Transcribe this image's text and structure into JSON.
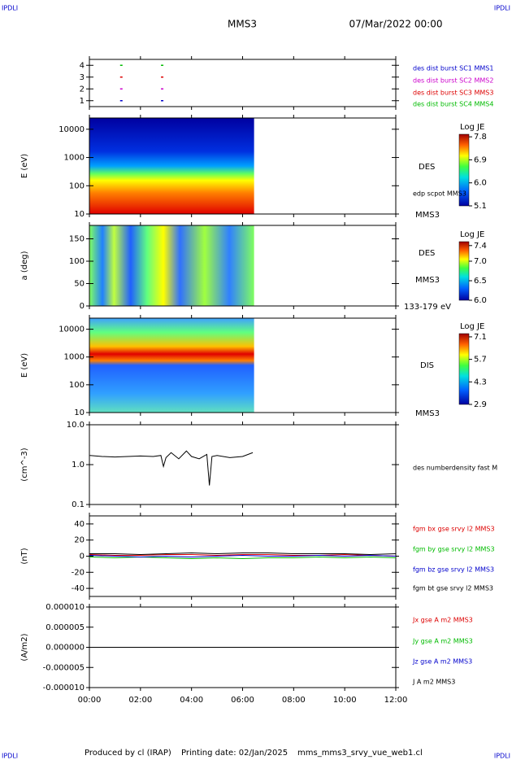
{
  "header": {
    "left": "IPDLI",
    "right": "IPDLI",
    "title": "MMS3",
    "date": "07/Mar/2022 00:00"
  },
  "footer": {
    "producer": "Produced by cl (IRAP)",
    "printing": "Printing date: 02/Jan/2025",
    "file": "mms_mms3_srvy_vue_web1.cl"
  },
  "chart_data": [
    {
      "type": "event",
      "ylim": [
        0.5,
        4.5
      ],
      "yticks": [
        1,
        2,
        3,
        4
      ],
      "x": [
        1.25,
        2.85
      ],
      "series": [
        {
          "name": "des dist burst SC1 MMS1",
          "color": "#0000cc",
          "values": [
            1,
            1
          ]
        },
        {
          "name": "des dist burst SC2 MMS2",
          "color": "#cc00cc",
          "values": [
            2,
            2
          ]
        },
        {
          "name": "des dist burst SC3 MMS3",
          "color": "#dd0000",
          "values": [
            3,
            3
          ]
        },
        {
          "name": "des dist burst SC4 MMS4",
          "color": "#00bb00",
          "values": [
            4,
            4
          ]
        }
      ]
    },
    {
      "type": "spectrogram",
      "ylabel": "E (eV)",
      "log": true,
      "ylim": [
        10,
        25000
      ],
      "yticks": [
        10,
        100,
        1000,
        10000
      ],
      "x": [
        0,
        6.45
      ],
      "colorbar": {
        "title": "Log JE",
        "clim": [
          5.1,
          7.9
        ],
        "ticks": [
          5.1,
          {
            "value": 6,
            "label": "6.0"
          },
          6.9,
          7.8
        ]
      },
      "labels": [
        "DES",
        "edp scpot MMS3",
        "MMS3"
      ]
    },
    {
      "type": "spectrogram",
      "ylabel": "a (deg)",
      "ylim": [
        0,
        180
      ],
      "yticks": [
        0,
        50,
        100,
        150
      ],
      "x": [
        0,
        6.45
      ],
      "colorbar": {
        "title": "Log JE",
        "clim": [
          6.0,
          7.5
        ],
        "ticks": [
          {
            "value": 6,
            "label": "6.0"
          },
          6.5,
          {
            "value": 7,
            "label": "7.0"
          },
          7.4
        ]
      },
      "labels": [
        "DES",
        "MMS3",
        "133-179 eV"
      ]
    },
    {
      "type": "spectrogram",
      "ylabel": "E (eV)",
      "log": true,
      "ylim": [
        10,
        25000
      ],
      "yticks": [
        10,
        100,
        1000,
        10000
      ],
      "x": [
        0,
        6.45
      ],
      "colorbar": {
        "title": "Log JE",
        "clim": [
          2.9,
          7.3
        ],
        "ticks": [
          2.9,
          4.3,
          5.7,
          7.1
        ]
      },
      "labels": [
        "DIS",
        "MMS3"
      ]
    },
    {
      "type": "line",
      "ylabel": "(cm^-3)",
      "log": true,
      "ylim": [
        0.1,
        10
      ],
      "yticks": [
        {
          "value": 0.1,
          "label": "0.1"
        },
        {
          "value": 1,
          "label": "1.0"
        },
        {
          "value": 10,
          "label": "10.0"
        }
      ],
      "x": [
        0.02,
        0.5,
        1,
        1.5,
        2,
        2.5,
        2.8,
        2.9,
        3.0,
        3.2,
        3.5,
        3.8,
        4.0,
        4.3,
        4.6,
        4.7,
        4.8,
        5.0,
        5.5,
        6.0,
        6.4
      ],
      "series": [
        {
          "name": "des numberdensity fast M",
          "color": "#000000",
          "values": [
            1.7,
            1.6,
            1.55,
            1.6,
            1.65,
            1.6,
            1.7,
            0.9,
            1.5,
            2.0,
            1.4,
            2.2,
            1.6,
            1.4,
            1.8,
            0.3,
            1.6,
            1.7,
            1.5,
            1.6,
            2.0
          ]
        }
      ]
    },
    {
      "type": "line",
      "ylabel": "(nT)",
      "ylim": [
        -50,
        50
      ],
      "yticks": [
        -40,
        -20,
        0,
        20,
        40
      ],
      "x": [
        0,
        1,
        2,
        3,
        4,
        5,
        6,
        7,
        8,
        9,
        10,
        11,
        12
      ],
      "series": [
        {
          "name": "fgm bx gse srvy l2 MMS3",
          "color": "#dd0000",
          "values": [
            2,
            1,
            1,
            2,
            2,
            1,
            2,
            2,
            1,
            1,
            2,
            1,
            0
          ]
        },
        {
          "name": "fgm by gse srvy l2 MMS3",
          "color": "#00bb00",
          "values": [
            -1,
            -2,
            -1,
            -2,
            -3,
            -2,
            -3,
            -2,
            -2,
            -1,
            -2,
            -1,
            -2
          ]
        },
        {
          "name": "fgm bz gse srvy l2 MMS3",
          "color": "#0000cc",
          "values": [
            1,
            0,
            -1,
            0,
            -1,
            0,
            1,
            0,
            0,
            1,
            0,
            1,
            0
          ]
        },
        {
          "name": "fgm bt gse srvy l2 MMS3",
          "color": "#000000",
          "values": [
            3,
            3,
            2,
            3,
            4,
            3,
            4,
            4,
            3,
            3,
            3,
            2,
            3
          ]
        }
      ]
    },
    {
      "type": "line",
      "ylabel": "(A/m2)",
      "ylim": [
        -1e-05,
        1e-05
      ],
      "yticks": [
        {
          "value": -1e-05,
          "label": "-0.000010"
        },
        {
          "value": -5e-06,
          "label": "-0.000005"
        },
        {
          "value": 0,
          "label": "0.000000"
        },
        {
          "value": 5e-06,
          "label": "0.000005"
        },
        {
          "value": 1e-05,
          "label": "0.000010"
        }
      ],
      "x": [
        0,
        12
      ],
      "xlim": [
        0,
        12
      ],
      "xticks": [
        {
          "value": 0,
          "label": "00:00"
        },
        {
          "value": 2,
          "label": "02:00"
        },
        {
          "value": 4,
          "label": "04:00"
        },
        {
          "value": 6,
          "label": "06:00"
        },
        {
          "value": 8,
          "label": "08:00"
        },
        {
          "value": 10,
          "label": "10:00"
        },
        {
          "value": 12,
          "label": "12:00"
        }
      ],
      "series": [
        {
          "name": "Jx gse A m2 MMS3",
          "color": "#dd0000",
          "values": [
            0,
            0
          ]
        },
        {
          "name": "Jy gse A m2 MMS3",
          "color": "#00bb00",
          "values": [
            0,
            0
          ]
        },
        {
          "name": "Jz gse A m2 MMS3",
          "color": "#0000cc",
          "values": [
            0,
            0
          ]
        },
        {
          "name": "J A m2 MMS3",
          "color": "#000000",
          "values": [
            0,
            0
          ]
        }
      ]
    }
  ]
}
